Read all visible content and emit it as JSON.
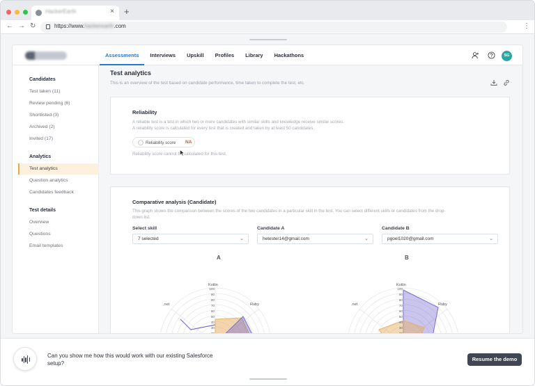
{
  "browser": {
    "tab_title": "HackerEarth",
    "tab_close": "×",
    "new_tab": "+",
    "url_prefix": "https://www.",
    "url_domain": "hackerearth",
    "url_suffix": ".com"
  },
  "app": {
    "logo_text": "HackerEarth",
    "nav": [
      "Assessments",
      "Interviews",
      "Upskill",
      "Profiles",
      "Library",
      "Hackathons"
    ],
    "active_nav": "Assessments",
    "avatar_initials": "SG"
  },
  "sidebar": {
    "candidates_title": "Candidates",
    "candidates": [
      "Test taken (11)",
      "Review pending (6)",
      "Shortlisted (3)",
      "Archived (2)",
      "Invited (17)"
    ],
    "analytics_title": "Analytics",
    "analytics": [
      "Test analytics",
      "Question analytics",
      "Candidates feedback"
    ],
    "details_title": "Test details",
    "details": [
      "Overview",
      "Questions",
      "Email templates"
    ]
  },
  "page": {
    "title": "Test analytics",
    "description": "This is an overview of the test based on candidate performance, time taken to complete the test, etc."
  },
  "reliability": {
    "title": "Reliability",
    "desc1": "A reliable test is a test in which two or more candidates with similar skills and knowledge receive similar scores.",
    "desc2": "A reliability score is calculated for every test that is created and taken by at least 50 candidates.",
    "score_label": "Reliability score",
    "score_value": "NA",
    "note": "Reliability score cannot be calculated for this test."
  },
  "comparative": {
    "title": "Comparative analysis (Candidate)",
    "desc1": "This graph shows the comparison between the scores of the two candidates in a particular skill in the test. You can select different skills or candidates from the drop-",
    "desc2": "down list.",
    "skill_label": "Select skill",
    "skill_value": "7 selected",
    "candidate_a_label": "Candidate A",
    "candidate_a_value": "hetester14@gmail.com",
    "candidate_b_label": "Candidate B",
    "candidate_b_value": "pgoel1020@gmail.com",
    "radar_a_title": "A",
    "radar_b_title": "B",
    "axis_labels": {
      "kotlin": "Kotlin",
      "ruby": "Ruby",
      "net": ".net"
    },
    "ticks": [
      "100",
      "90",
      "80",
      "70",
      "60",
      "50",
      "40",
      "30",
      "20",
      "10"
    ]
  },
  "assistant": {
    "question": "Can you show me how this would work with our existing Salesforce setup?",
    "resume_label": "Resume the demo"
  },
  "colors": {
    "accent": "#2277d8",
    "active_side_bg": "#fdf0dc",
    "active_side_border": "#e8a94a",
    "na_text": "#c2592f",
    "avatar_bg": "#2ba7a2",
    "series_a": "#7b6fd0",
    "series_b": "#e8b269",
    "button_bg": "#404652"
  },
  "icons": [
    "back-arrow-icon",
    "forward-arrow-icon",
    "reload-icon",
    "lock-icon",
    "kebab-menu-icon",
    "add-user-icon",
    "help-icon",
    "download-icon",
    "link-icon",
    "shield-icon",
    "chevron-down-icon",
    "voice-wave-icon"
  ]
}
